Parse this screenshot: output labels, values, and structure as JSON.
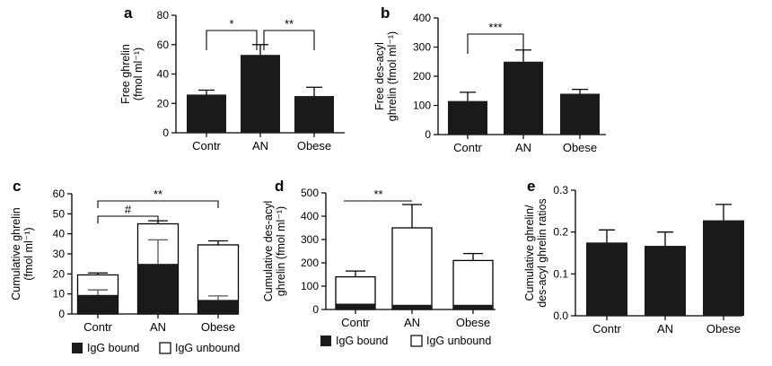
{
  "chart_data": [
    {
      "panel": "a",
      "type": "bar",
      "ylabel_lines": [
        "Free ghrelin",
        "(fmol ml⁻¹)"
      ],
      "categories": [
        "Contr",
        "AN",
        "Obese"
      ],
      "values": [
        26,
        53,
        25
      ],
      "errors": [
        3,
        7,
        6
      ],
      "ylim": [
        0,
        80
      ],
      "yticks": [
        0,
        20,
        40,
        60,
        80
      ],
      "significance": [
        {
          "from": 0,
          "to": 1,
          "label": "*"
        },
        {
          "from": 1,
          "to": 2,
          "label": "**"
        }
      ]
    },
    {
      "panel": "b",
      "type": "bar",
      "ylabel_lines": [
        "Free des-acyl",
        "ghrelin (fmol ml⁻¹)"
      ],
      "categories": [
        "Contr",
        "AN",
        "Obese"
      ],
      "values": [
        115,
        250,
        140
      ],
      "errors": [
        30,
        40,
        15
      ],
      "ylim": [
        0,
        400
      ],
      "yticks": [
        0,
        100,
        200,
        300,
        400
      ],
      "significance": [
        {
          "from": 0,
          "to": 1,
          "label": "***"
        }
      ]
    },
    {
      "panel": "c",
      "type": "stacked_bar",
      "ylabel_lines": [
        "Cumulative ghrelin",
        "(fmol ml⁻¹)"
      ],
      "categories": [
        "Contr",
        "AN",
        "Obese"
      ],
      "series": [
        {
          "name": "IgG bound",
          "values": [
            9.5,
            25,
            7
          ],
          "errors": [
            2.5,
            12,
            2
          ]
        },
        {
          "name": "IgG unbound",
          "values": [
            10,
            20,
            27.5
          ],
          "errors": [
            1,
            1.5,
            2
          ]
        }
      ],
      "ylim": [
        0,
        60
      ],
      "yticks": [
        0,
        10,
        20,
        30,
        40,
        50,
        60
      ],
      "significance": [
        {
          "from": 0,
          "to": 1,
          "label": "#"
        },
        {
          "from": 0,
          "to": 2,
          "label": "**"
        }
      ],
      "legend": [
        "IgG bound",
        "IgG unbound"
      ]
    },
    {
      "panel": "d",
      "type": "stacked_bar",
      "ylabel_lines": [
        "Cumulative des-acyl",
        "ghrelin (fmol ml⁻¹)"
      ],
      "categories": [
        "Contr",
        "AN",
        "Obese"
      ],
      "series": [
        {
          "name": "IgG bound",
          "values": [
            25,
            20,
            20
          ],
          "errors": [
            0,
            0,
            0
          ]
        },
        {
          "name": "IgG unbound",
          "values": [
            115,
            330,
            190
          ],
          "errors": [
            25,
            100,
            30
          ]
        }
      ],
      "ylim": [
        0,
        500
      ],
      "yticks": [
        0,
        100,
        200,
        300,
        400,
        500
      ],
      "significance": [
        {
          "from": 0,
          "to": 1,
          "label": "**"
        }
      ],
      "legend": [
        "IgG bound",
        "IgG unbound"
      ]
    },
    {
      "panel": "e",
      "type": "bar",
      "ylabel_lines": [
        "Cumulative ghrelin/",
        "des-acyl ghrelin ratios"
      ],
      "categories": [
        "Contr",
        "AN",
        "Obese"
      ],
      "values": [
        0.175,
        0.167,
        0.228
      ],
      "errors": [
        0.03,
        0.033,
        0.038
      ],
      "ylim": [
        0,
        0.3
      ],
      "yticks": [
        0.0,
        0.1,
        0.2,
        0.3
      ],
      "significance": []
    }
  ],
  "colors": {
    "bar_fill": "#1a1a1a",
    "unbound_fill": "#ffffff",
    "axis": "#000000"
  }
}
